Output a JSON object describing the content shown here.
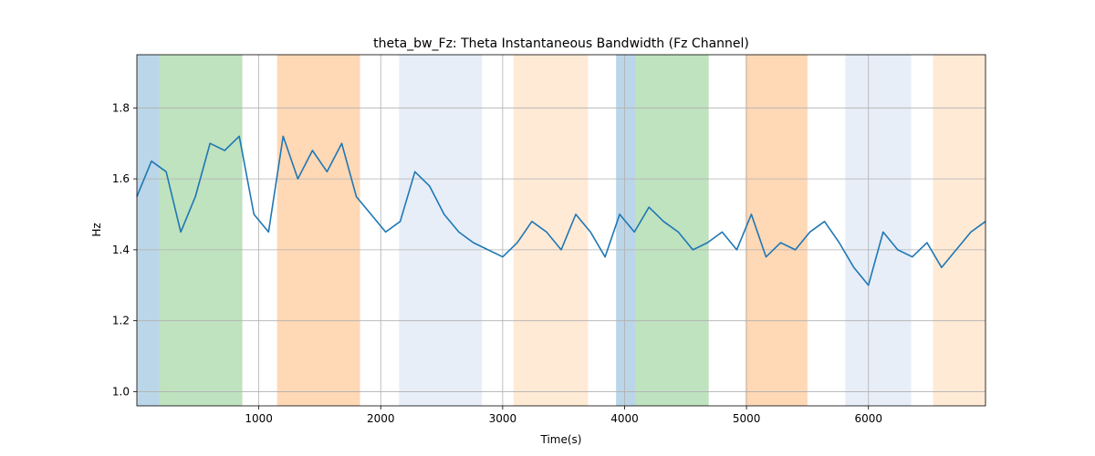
{
  "chart_data": {
    "type": "line",
    "title": "theta_bw_Fz: Theta Instantaneous Bandwidth (Fz Channel)",
    "xlabel": "Time(s)",
    "ylabel": "Hz",
    "xlim": [
      0,
      6960
    ],
    "ylim": [
      0.96,
      1.95
    ],
    "xticks": [
      1000,
      2000,
      3000,
      4000,
      5000,
      6000
    ],
    "yticks": [
      1.0,
      1.2,
      1.4,
      1.6,
      1.8
    ],
    "xtick_labels": [
      "1000",
      "2000",
      "3000",
      "4000",
      "5000",
      "6000"
    ],
    "ytick_labels": [
      "1.0",
      "1.2",
      "1.4",
      "1.6",
      "1.8"
    ],
    "grid": true,
    "series_color": "#1f77b4",
    "bands": [
      {
        "x0": 0,
        "x1": 185,
        "color": "#1f77b4",
        "opacity": 0.3
      },
      {
        "x0": 185,
        "x1": 865,
        "color": "#2ca02c",
        "opacity": 0.3
      },
      {
        "x0": 1150,
        "x1": 1830,
        "color": "#ff7f0e",
        "opacity": 0.3
      },
      {
        "x0": 2150,
        "x1": 2830,
        "color": "#aec7e8",
        "opacity": 0.3
      },
      {
        "x0": 3090,
        "x1": 3700,
        "color": "#ffbb78",
        "opacity": 0.3
      },
      {
        "x0": 3930,
        "x1": 4090,
        "color": "#1f77b4",
        "opacity": 0.3
      },
      {
        "x0": 4090,
        "x1": 4690,
        "color": "#2ca02c",
        "opacity": 0.3
      },
      {
        "x0": 4990,
        "x1": 5500,
        "color": "#ff7f0e",
        "opacity": 0.3
      },
      {
        "x0": 5810,
        "x1": 6350,
        "color": "#aec7e8",
        "opacity": 0.3
      },
      {
        "x0": 6530,
        "x1": 6960,
        "color": "#ffbb78",
        "opacity": 0.3
      }
    ],
    "x": [
      0,
      120,
      240,
      360,
      480,
      600,
      720,
      840,
      960,
      1080,
      1200,
      1320,
      1440,
      1560,
      1680,
      1800,
      1920,
      2040,
      2160,
      2280,
      2400,
      2520,
      2640,
      2760,
      2880,
      3000,
      3120,
      3240,
      3360,
      3480,
      3600,
      3720,
      3840,
      3960,
      4080,
      4200,
      4320,
      4440,
      4560,
      4680,
      4800,
      4920,
      5040,
      5160,
      5280,
      5400,
      5520,
      5640,
      5760,
      5880,
      6000,
      6120,
      6240,
      6360,
      6480,
      6600,
      6720,
      6840,
      6960
    ],
    "y": [
      1.55,
      1.65,
      1.62,
      1.45,
      1.55,
      1.7,
      1.68,
      1.72,
      1.5,
      1.45,
      1.72,
      1.6,
      1.68,
      1.62,
      1.7,
      1.55,
      1.5,
      1.45,
      1.48,
      1.62,
      1.58,
      1.5,
      1.45,
      1.42,
      1.4,
      1.38,
      1.42,
      1.48,
      1.45,
      1.4,
      1.5,
      1.45,
      1.38,
      1.5,
      1.45,
      1.52,
      1.48,
      1.45,
      1.4,
      1.42,
      1.45,
      1.4,
      1.5,
      1.38,
      1.42,
      1.4,
      1.45,
      1.48,
      1.42,
      1.35,
      1.3,
      1.45,
      1.4,
      1.38,
      1.42,
      1.35,
      1.4,
      1.45,
      1.48
    ]
  }
}
